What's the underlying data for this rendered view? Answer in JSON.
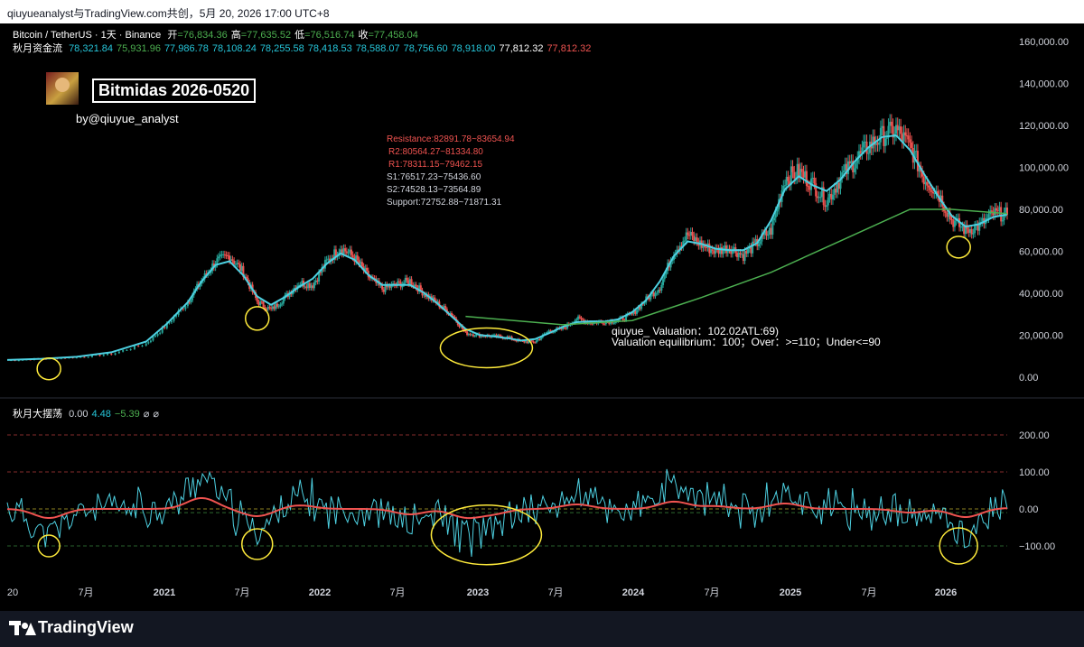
{
  "header": {
    "text": "qiuyueanalyst与TradingView.com共创，5月 20, 2026 17:00 UTC+8"
  },
  "legend": {
    "symbol": "Bitcoin / TetherUS · 1天 · Binance",
    "ohlc": [
      {
        "label": "开",
        "value": "=76,834.36"
      },
      {
        "label": "高",
        "value": "=77,635.52"
      },
      {
        "label": "低",
        "value": "=76,516.74"
      },
      {
        "label": "收",
        "value": "=77,458.04"
      }
    ],
    "indicator_name": "秋月资金流",
    "indicator_values": [
      {
        "v": "78,321.84",
        "c": "#26c6da"
      },
      {
        "v": "75,931.96",
        "c": "#4caf50"
      },
      {
        "v": "77,986.78",
        "c": "#26c6da"
      },
      {
        "v": "78,108.24",
        "c": "#26c6da"
      },
      {
        "v": "78,255.58",
        "c": "#26c6da"
      },
      {
        "v": "78,418.53",
        "c": "#26c6da"
      },
      {
        "v": "78,588.07",
        "c": "#26c6da"
      },
      {
        "v": "78,756.60",
        "c": "#26c6da"
      },
      {
        "v": "78,918.00",
        "c": "#26c6da"
      },
      {
        "v": "77,812.32",
        "c": "#ffffff"
      },
      {
        "v": "77,812.32",
        "c": "#ef5350"
      }
    ]
  },
  "overlay": {
    "title": "Bitmidas 2026-0520",
    "byline": "by@qiuyue_analyst",
    "levels": [
      {
        "text": "Resistance:82891.78~83654.94",
        "c": "#ef5350"
      },
      {
        "text": "R2:80564.27~81334.80",
        "c": "#ef5350"
      },
      {
        "text": "R1:78311.15~79462.15",
        "c": "#ef5350"
      },
      {
        "text": "S1:76517.23~75436.60",
        "c": "#d1d4dc"
      },
      {
        "text": "S2:74528.13~73564.89",
        "c": "#d1d4dc"
      },
      {
        "text": "Support:72752.88~71871.31",
        "c": "#d1d4dc"
      }
    ],
    "valuation_line1": "qiuyue_ Valuation：102.02ATL:69)",
    "valuation_line2": "Valuation equilibrium：100；Over：>=110；Under<=90"
  },
  "oscillator": {
    "name": "秋月大摆荡",
    "values": [
      {
        "v": "0.00",
        "c": "#d1d4dc"
      },
      {
        "v": "4.48",
        "c": "#26c6da"
      },
      {
        "v": "−5.39",
        "c": "#4caf50"
      },
      {
        "v": "⌀",
        "c": "#d1d4dc"
      },
      {
        "v": "⌀",
        "c": "#d1d4dc"
      }
    ]
  },
  "colors": {
    "candle_up": "#26a69a",
    "candle_down": "#ef5350",
    "ma_fast": "#4dd0e1",
    "ma_slow": "#4caf50",
    "circle": "#ffeb3b",
    "osc_line": "#4dd0e1",
    "osc_red": "#ef5350",
    "osc_purple": "#ab47bc",
    "osc_yellow": "#ffeb3b"
  },
  "chart_data": [
    {
      "type": "line",
      "title": "Bitcoin / TetherUS · 1天 · Binance",
      "x_labels": [
        "20",
        "7月",
        "2021",
        "7月",
        "2022",
        "7月",
        "2023",
        "7月",
        "2024",
        "7月",
        "2025",
        "7月",
        "2026"
      ],
      "y_ticks": [
        "160,000.00",
        "140,000.00",
        "120,000.00",
        "100,000.00",
        "80,000.00",
        "60,000.00",
        "40,000.00",
        "20,000.00",
        "0.00"
      ],
      "ylim": [
        0,
        160000
      ],
      "series": [
        {
          "name": "Bitcoin / TetherUS",
          "points": [
            [
              0.0,
              8000
            ],
            [
              0.05,
              8800
            ],
            [
              0.1,
              9500
            ],
            [
              0.15,
              11000
            ],
            [
              0.2,
              16000
            ],
            [
              0.23,
              25000
            ],
            [
              0.26,
              36000
            ],
            [
              0.28,
              46000
            ],
            [
              0.3,
              55000
            ],
            [
              0.32,
              58000
            ],
            [
              0.34,
              50000
            ],
            [
              0.36,
              36000
            ],
            [
              0.38,
              32000
            ],
            [
              0.4,
              38000
            ],
            [
              0.42,
              45000
            ],
            [
              0.44,
              44000
            ],
            [
              0.46,
              55000
            ],
            [
              0.48,
              62000
            ],
            [
              0.5,
              57000
            ],
            [
              0.52,
              48000
            ],
            [
              0.54,
              42000
            ],
            [
              0.56,
              44000
            ],
            [
              0.58,
              46000
            ],
            [
              0.6,
              40000
            ],
            [
              0.62,
              35000
            ],
            [
              0.64,
              30000
            ],
            [
              0.66,
              21000
            ],
            [
              0.68,
              20000
            ],
            [
              0.7,
              19500
            ],
            [
              0.72,
              19000
            ],
            [
              0.74,
              17000
            ],
            [
              0.76,
              16800
            ],
            [
              0.78,
              22000
            ],
            [
              0.8,
              23000
            ],
            [
              0.82,
              28000
            ],
            [
              0.84,
              26000
            ],
            [
              0.86,
              26500
            ],
            [
              0.88,
              27000
            ],
            [
              0.9,
              30000
            ],
            [
              0.92,
              37000
            ],
            [
              0.94,
              43000
            ],
            [
              0.96,
              60000
            ],
            [
              0.98,
              68000
            ],
            [
              1.0,
              63000
            ],
            [
              1.02,
              60000
            ],
            [
              1.04,
              62000
            ],
            [
              1.06,
              58000
            ],
            [
              1.08,
              64000
            ],
            [
              1.1,
              70000
            ],
            [
              1.12,
              95000
            ],
            [
              1.14,
              98000
            ],
            [
              1.16,
              92000
            ],
            [
              1.18,
              84000
            ],
            [
              1.2,
              95000
            ],
            [
              1.22,
              103000
            ],
            [
              1.24,
              110000
            ],
            [
              1.26,
              115000
            ],
            [
              1.28,
              118000
            ],
            [
              1.3,
              110000
            ],
            [
              1.32,
              95000
            ],
            [
              1.34,
              88000
            ],
            [
              1.36,
              75000
            ],
            [
              1.38,
              70000
            ],
            [
              1.4,
              72000
            ],
            [
              1.42,
              78000
            ],
            [
              1.44,
              77458
            ]
          ]
        },
        {
          "name": "ma_slow",
          "points": [
            [
              0.66,
              29000
            ],
            [
              0.8,
              25000
            ],
            [
              0.9,
              27000
            ],
            [
              1.0,
              38000
            ],
            [
              1.1,
              50000
            ],
            [
              1.2,
              65000
            ],
            [
              1.3,
              80000
            ],
            [
              1.36,
              80000
            ],
            [
              1.44,
              78000
            ]
          ]
        }
      ]
    },
    {
      "type": "line",
      "title": "秋月大摆荡",
      "y_ticks": [
        "200.00",
        "100.00",
        "0.00",
        "−100.00"
      ],
      "ylim": [
        -150,
        250
      ],
      "reference_lines": [
        200,
        100,
        0,
        -100
      ]
    }
  ],
  "footer": {
    "brand": "TradingView"
  }
}
